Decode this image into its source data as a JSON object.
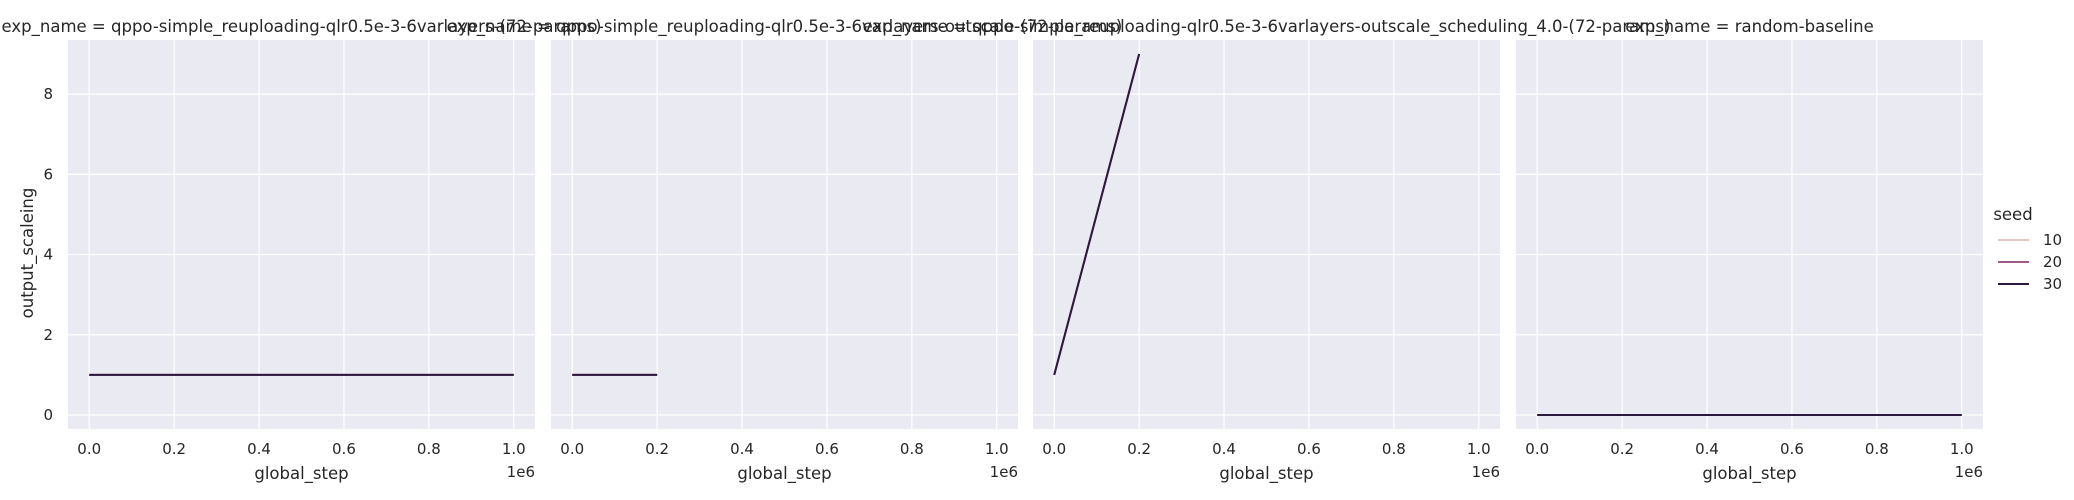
{
  "chart_data": {
    "type": "line",
    "ylabel": "output_scaleing",
    "xlabel": "global_step",
    "x_offset_text": "1e6",
    "x_ticks": [
      0.0,
      0.2,
      0.4,
      0.6,
      0.8,
      1.0
    ],
    "x_tick_labels": [
      "0.0",
      "0.2",
      "0.4",
      "0.6",
      "0.8",
      "1.0"
    ],
    "xlim": [
      -0.05,
      1.05
    ],
    "y_ticks": [
      0,
      2,
      4,
      6,
      8
    ],
    "y_tick_labels": [
      "0",
      "2",
      "4",
      "6",
      "8"
    ],
    "ylim": [
      -0.35,
      9.35
    ],
    "grid": true,
    "legend": {
      "title": "seed",
      "placement": "right",
      "entries": [
        {
          "label": "10",
          "color": "#e8c4c4"
        },
        {
          "label": "20",
          "color": "#a05a8c"
        },
        {
          "label": "30",
          "color": "#2b1a3d"
        }
      ]
    },
    "panels": [
      {
        "title": "exp_name = qppo-simple_reuploading-qlr0.5e-3-6varlayers-(72-params)",
        "series": [
          {
            "name": "10",
            "x": [
              0.0,
              1.0
            ],
            "y": [
              1,
              1
            ]
          },
          {
            "name": "20",
            "x": [
              0.0,
              1.0
            ],
            "y": [
              1,
              1
            ]
          },
          {
            "name": "30",
            "x": [
              0.0,
              1.0
            ],
            "y": [
              1,
              1
            ]
          }
        ]
      },
      {
        "title": "exp_name = qppo-simple_reuploading-qlr0.5e-3-6varlayers-outscale-(72-params)",
        "series": [
          {
            "name": "10",
            "x": [
              0.0,
              0.2
            ],
            "y": [
              1,
              1
            ]
          },
          {
            "name": "20",
            "x": [
              0.0,
              0.2
            ],
            "y": [
              1,
              1
            ]
          },
          {
            "name": "30",
            "x": [
              0.0,
              0.2
            ],
            "y": [
              1,
              1
            ]
          }
        ]
      },
      {
        "title": "exp_name = qppo-simple_reuploading-qlr0.5e-3-6varlayers-outscale_scheduling_4.0-(72-params)",
        "series": [
          {
            "name": "10",
            "x": [
              0.0,
              0.2
            ],
            "y": [
              1,
              9
            ]
          },
          {
            "name": "20",
            "x": [
              0.0,
              0.2
            ],
            "y": [
              1,
              9
            ]
          },
          {
            "name": "30",
            "x": [
              0.0,
              0.2
            ],
            "y": [
              1,
              9
            ]
          }
        ]
      },
      {
        "title": "exp_name = random-baseline",
        "series": [
          {
            "name": "10",
            "x": [
              0.0,
              1.0
            ],
            "y": [
              0,
              0
            ]
          },
          {
            "name": "20",
            "x": [
              0.0,
              1.0
            ],
            "y": [
              0,
              0
            ]
          },
          {
            "name": "30",
            "x": [
              0.0,
              1.0
            ],
            "y": [
              0,
              0
            ]
          }
        ]
      }
    ]
  }
}
